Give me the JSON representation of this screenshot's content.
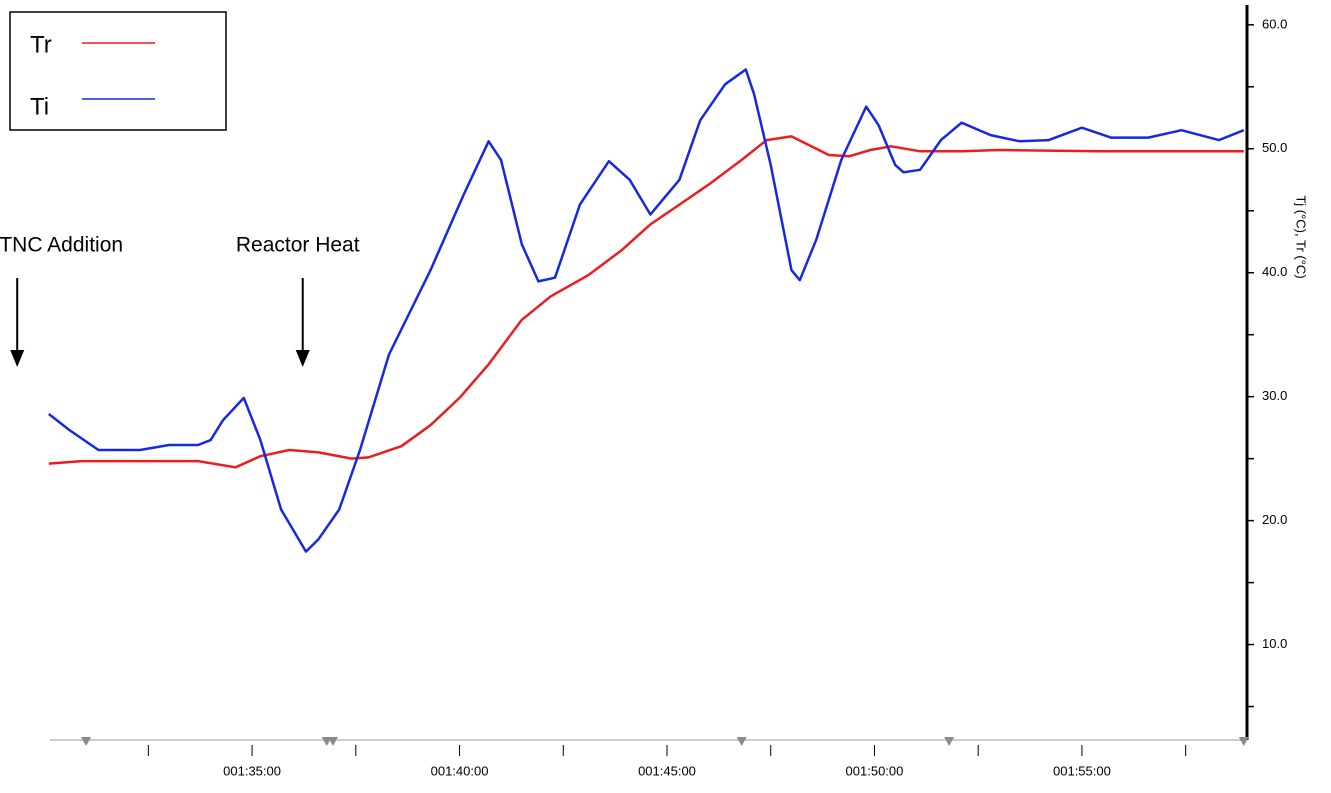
{
  "chart_data": {
    "type": "line",
    "y_label": "Tj (°C), Tr (°C)",
    "annotations": [
      {
        "text": "TNC Addition",
        "x": 90.4
      },
      {
        "text": "Reactor Heat",
        "x": 96.1
      }
    ],
    "series": [
      {
        "name": "Tr",
        "color": "#ee1c1c",
        "x": [
          90.1,
          90.9,
          92.3,
          93.7,
          94.6,
          95.2,
          95.9,
          96.6,
          97.4,
          97.8,
          98.6,
          99.3,
          100.0,
          100.7,
          101.5,
          102.2,
          103.1,
          103.9,
          104.6,
          105.3,
          106.0,
          106.8,
          107.4,
          108.0,
          108.9,
          109.4,
          109.9,
          110.4,
          111.1,
          112.1,
          113.0,
          115.4,
          118.9
        ],
        "values": [
          24.6,
          24.8,
          24.8,
          24.8,
          24.3,
          25.2,
          25.7,
          25.5,
          25.0,
          25.1,
          26.0,
          27.7,
          29.9,
          32.6,
          36.2,
          38.1,
          39.8,
          41.8,
          43.9,
          45.5,
          47.1,
          49.1,
          50.7,
          51.0,
          49.5,
          49.4,
          49.9,
          50.2,
          49.8,
          49.8,
          49.9,
          49.8,
          49.8
        ]
      },
      {
        "name": "Ti",
        "color": "#1428e6",
        "x": [
          90.1,
          90.6,
          91.3,
          92.3,
          93.0,
          93.7,
          94.0,
          94.3,
          94.8,
          95.2,
          95.7,
          96.3,
          96.6,
          97.1,
          97.6,
          98.3,
          99.3,
          100.1,
          100.7,
          101.0,
          101.5,
          101.9,
          102.3,
          102.9,
          103.6,
          104.1,
          104.6,
          104.8,
          105.3,
          105.8,
          106.4,
          106.9,
          107.1,
          107.5,
          108.0,
          108.2,
          108.6,
          109.2,
          109.8,
          110.1,
          110.5,
          110.7,
          111.1,
          111.6,
          112.1,
          112.8,
          113.5,
          114.2,
          115.0,
          115.7,
          116.6,
          117.4,
          118.3,
          118.9
        ],
        "values": [
          28.6,
          27.3,
          25.7,
          25.7,
          26.1,
          26.1,
          26.5,
          28.1,
          29.9,
          26.5,
          20.9,
          17.5,
          18.5,
          20.9,
          25.7,
          33.4,
          40.2,
          46.3,
          50.6,
          49.1,
          42.3,
          39.3,
          39.6,
          45.5,
          49.0,
          47.5,
          44.7,
          45.5,
          47.5,
          52.3,
          55.2,
          56.4,
          54.4,
          48.7,
          40.2,
          39.4,
          42.7,
          49.1,
          53.4,
          51.9,
          48.7,
          48.1,
          48.3,
          50.7,
          52.1,
          51.1,
          50.6,
          50.7,
          51.7,
          50.9,
          50.9,
          51.5,
          50.7,
          51.5
        ]
      }
    ],
    "xlim": [
      90.13,
      118.93
    ],
    "xticks": [
      {
        "value": 95,
        "label": "001:35:00"
      },
      {
        "value": 100,
        "label": "001:40:00"
      },
      {
        "value": 105,
        "label": "001:45:00"
      },
      {
        "value": 110,
        "label": "001:50:00"
      },
      {
        "value": 115,
        "label": "001:55:00"
      }
    ],
    "xminorticks": [
      92.5,
      97.5,
      102.5,
      107.5,
      112.5,
      117.5
    ],
    "ylim": [
      2.3,
      61.6
    ],
    "yticks": [
      {
        "value": 10,
        "label": "10.0"
      },
      {
        "value": 20,
        "label": "20.0"
      },
      {
        "value": 30,
        "label": "30.0"
      },
      {
        "value": 40,
        "label": "40.0"
      },
      {
        "value": 50,
        "label": "50.0"
      },
      {
        "value": 60,
        "label": "60.0"
      }
    ],
    "yminorticks": [
      5,
      15,
      25,
      35,
      45,
      55
    ],
    "markers": [
      91.0,
      96.8,
      96.95,
      106.8,
      111.8,
      118.9
    ],
    "legend": "top-left"
  }
}
